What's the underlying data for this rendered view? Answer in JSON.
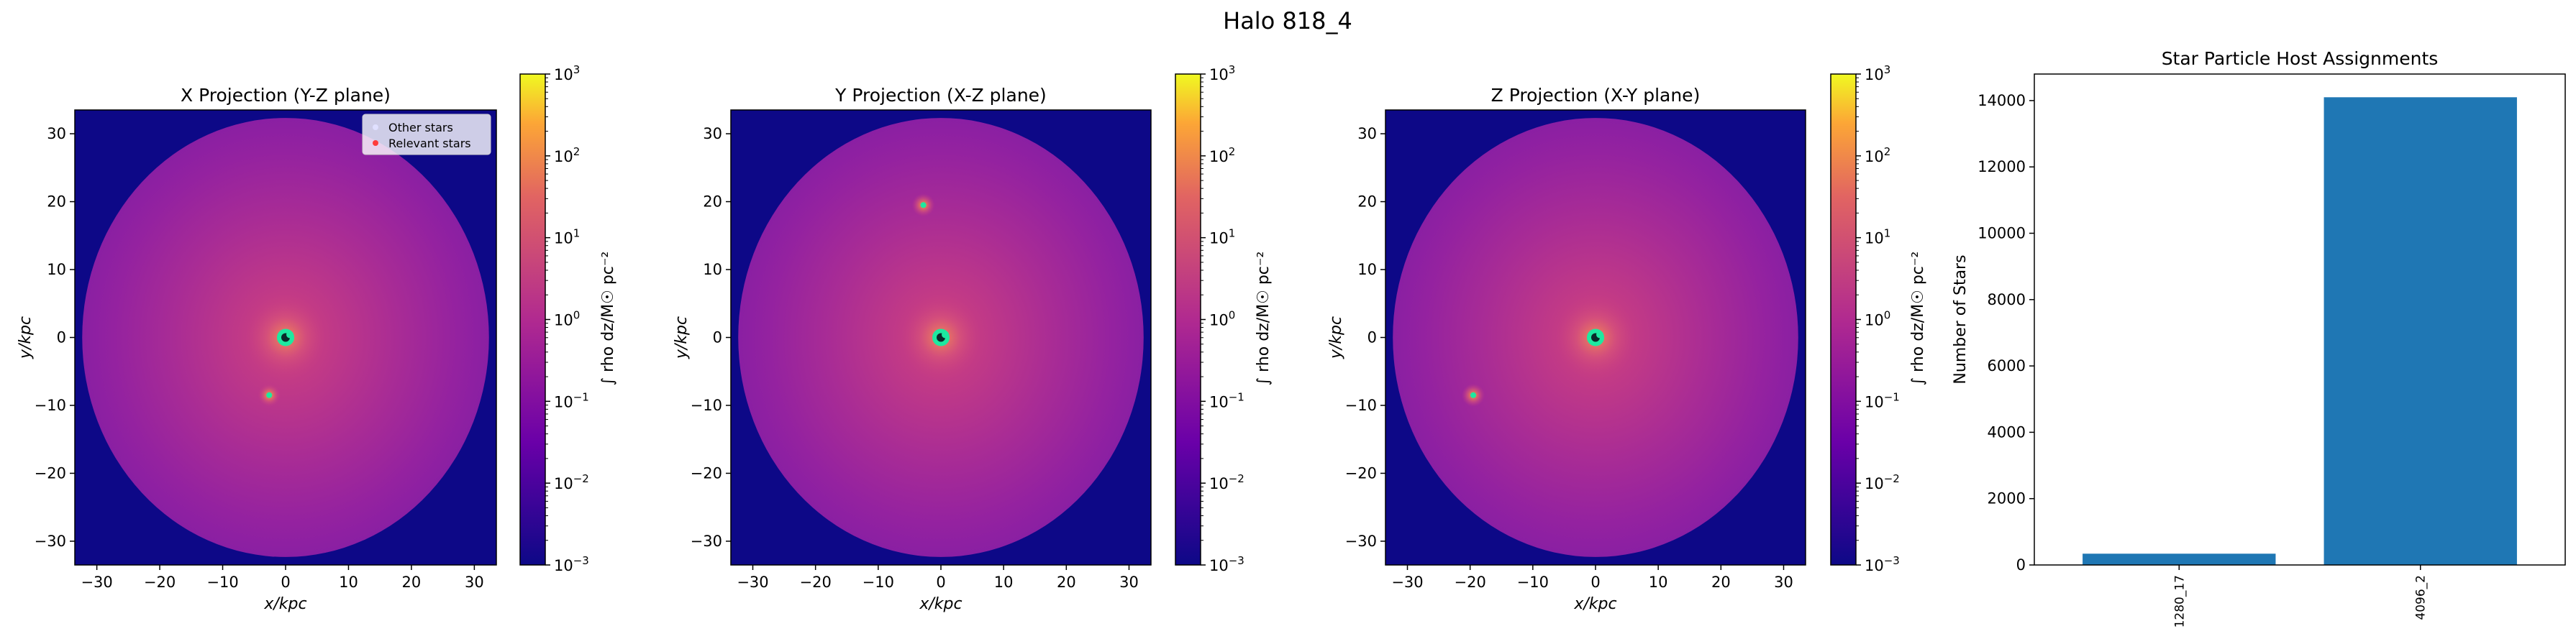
{
  "figure": {
    "suptitle": "Halo 818_4"
  },
  "colors": {
    "background_fill": "#0d0887",
    "bar_color": "#1f77b4",
    "other_stars": "#e0e0ff",
    "relevant_stars": "#ff3b3b",
    "stars_core": "#1de9a0",
    "colormap": "plasma"
  },
  "colorbar": {
    "label": "∫ rho dz/M☉ pc⁻²",
    "scale": "log",
    "range": [
      0.001,
      1000
    ],
    "ticks": [
      {
        "base": "10",
        "exp": "3"
      },
      {
        "base": "10",
        "exp": "2"
      },
      {
        "base": "10",
        "exp": "1"
      },
      {
        "base": "10",
        "exp": "0"
      },
      {
        "base": "10",
        "exp": "−1"
      },
      {
        "base": "10",
        "exp": "−2"
      },
      {
        "base": "10",
        "exp": "−3"
      }
    ]
  },
  "chart_data": [
    {
      "type": "heatmap",
      "title": "X Projection (Y-Z plane)",
      "xlabel": "x/kpc",
      "ylabel": "y/kpc",
      "xlim": [
        -33.5,
        33.5
      ],
      "ylim": [
        -33.5,
        33.5
      ],
      "xticks": [
        "−30",
        "−20",
        "−10",
        "0",
        "10",
        "20",
        "30"
      ],
      "yticks": [
        "30",
        "20",
        "10",
        "0",
        "−10",
        "−20",
        "−30"
      ],
      "legend": {
        "placement": "upper right",
        "entries": [
          "Other stars",
          "Relevant stars"
        ]
      },
      "hotspots": [
        {
          "x": 0.0,
          "y": 0.0,
          "label": "main"
        },
        {
          "x": -2.6,
          "y": -8.5,
          "label": "satellite"
        }
      ]
    },
    {
      "type": "heatmap",
      "title": "Y Projection (X-Z plane)",
      "xlabel": "x/kpc",
      "ylabel": "y/kpc",
      "xlim": [
        -33.5,
        33.5
      ],
      "ylim": [
        -33.5,
        33.5
      ],
      "xticks": [
        "−30",
        "−20",
        "−10",
        "0",
        "10",
        "20",
        "30"
      ],
      "yticks": [
        "30",
        "20",
        "10",
        "0",
        "−10",
        "−20",
        "−30"
      ],
      "hotspots": [
        {
          "x": 0.0,
          "y": 0.0,
          "label": "main"
        },
        {
          "x": -2.8,
          "y": 19.5,
          "label": "satellite"
        }
      ]
    },
    {
      "type": "heatmap",
      "title": "Z Projection (X-Y plane)",
      "xlabel": "x/kpc",
      "ylabel": "y/kpc",
      "xlim": [
        -33.5,
        33.5
      ],
      "ylim": [
        -33.5,
        33.5
      ],
      "xticks": [
        "−30",
        "−20",
        "−10",
        "0",
        "10",
        "20",
        "30"
      ],
      "yticks": [
        "30",
        "20",
        "10",
        "0",
        "−10",
        "−20",
        "−30"
      ],
      "hotspots": [
        {
          "x": 0.0,
          "y": 0.0,
          "label": "main"
        },
        {
          "x": -19.5,
          "y": -8.5,
          "label": "satellite"
        }
      ]
    },
    {
      "type": "bar",
      "title": "Star Particle Host Assignments",
      "xlabel": "",
      "ylabel": "Number of Stars",
      "ylim": [
        0,
        14800
      ],
      "yticks": [
        "0",
        "2000",
        "4000",
        "6000",
        "8000",
        "10000",
        "12000",
        "14000"
      ],
      "categories": [
        "1280_17",
        "4096_2"
      ],
      "values": [
        340,
        14100
      ]
    }
  ]
}
